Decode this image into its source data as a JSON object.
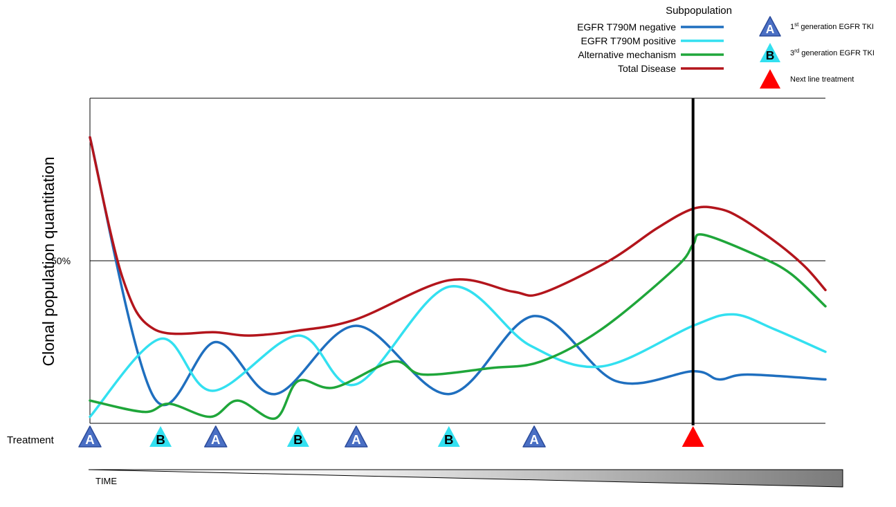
{
  "chart_data": {
    "type": "line",
    "ylabel": "Clonal population quantitation",
    "xlabel": "TIME",
    "y_ticks": [
      {
        "value": 50,
        "label": "50%"
      }
    ],
    "ylim": [
      0,
      100
    ],
    "xlim": [
      0,
      100
    ],
    "grid": "horizontal lines at 0, 50 and 100",
    "legend": {
      "title": "Subpopulation",
      "placement": "top-center"
    },
    "series": [
      {
        "name": "EGFR T790M negative",
        "color": "#1f6fbf",
        "x": [
          0,
          8.7,
          17.1,
          25.2,
          36.2,
          48.8,
          60.4,
          71.5,
          82,
          85.5,
          89.4,
          100
        ],
        "y": [
          88,
          8,
          25,
          9,
          30,
          9,
          33,
          13,
          16,
          13.5,
          15,
          13.5
        ]
      },
      {
        "name": "EGFR T790M positive",
        "color": "#33e0f0",
        "x": [
          0,
          9.6,
          16.7,
          28.3,
          36.2,
          48.8,
          59.8,
          69.6,
          82,
          87.5,
          93,
          100
        ],
        "y": [
          2,
          26,
          10,
          27,
          12,
          42,
          24,
          17.5,
          30,
          33.5,
          29,
          22
        ]
      },
      {
        "name": "Alternative mechanism",
        "color": "#1fa63a",
        "x": [
          0,
          7.4,
          10.8,
          16.4,
          20.1,
          25.2,
          28.3,
          33.2,
          41.2,
          45.3,
          54.5,
          61.3,
          69.6,
          79.7,
          82,
          83.4,
          90.8,
          95.3,
          100
        ],
        "y": [
          7,
          3.5,
          6,
          2,
          7,
          1.5,
          13,
          11,
          19,
          15,
          17,
          19,
          29,
          48,
          55,
          58,
          51.5,
          46,
          36
        ]
      },
      {
        "name": "Total Disease",
        "color": "#b3151c",
        "x": [
          0,
          4.4,
          8.7,
          17.1,
          21.7,
          28.3,
          36.2,
          48.8,
          57.5,
          61.4,
          70.6,
          77.1,
          82,
          85.5,
          88.6,
          93.7,
          97.3,
          100
        ],
        "y": [
          88,
          45,
          29,
          28,
          27,
          28.5,
          32,
          44,
          40.5,
          40,
          50,
          60,
          66,
          66,
          63,
          55,
          48,
          41
        ]
      }
    ]
  },
  "treatment": {
    "label": "Treatment",
    "markers": [
      {
        "x": 0,
        "letter": "A",
        "kind": "first"
      },
      {
        "x": 9.6,
        "letter": "B",
        "kind": "third"
      },
      {
        "x": 17.1,
        "letter": "A",
        "kind": "first"
      },
      {
        "x": 28.3,
        "letter": "B",
        "kind": "third"
      },
      {
        "x": 36.2,
        "letter": "A",
        "kind": "first"
      },
      {
        "x": 48.8,
        "letter": "B",
        "kind": "third"
      },
      {
        "x": 60.4,
        "letter": "A",
        "kind": "first"
      },
      {
        "x": 82,
        "letter": "",
        "kind": "next"
      }
    ],
    "vertical_line_at": 82
  },
  "treatment_legend": [
    {
      "letter": "A",
      "kind": "first",
      "text_pre": "1",
      "sup": "st",
      "text_post": " generation EGFR TKI"
    },
    {
      "letter": "B",
      "kind": "third",
      "text_pre": "3",
      "sup": "rd",
      "text_post": " generation EGFR TKI"
    },
    {
      "letter": "",
      "kind": "next",
      "text_pre": "Next line treatment",
      "sup": "",
      "text_post": ""
    }
  ],
  "colors": {
    "first_gen": "#4a6fc4",
    "third_gen": "#33e0f0",
    "next_line": "#ff0000",
    "axis": "#000000"
  }
}
